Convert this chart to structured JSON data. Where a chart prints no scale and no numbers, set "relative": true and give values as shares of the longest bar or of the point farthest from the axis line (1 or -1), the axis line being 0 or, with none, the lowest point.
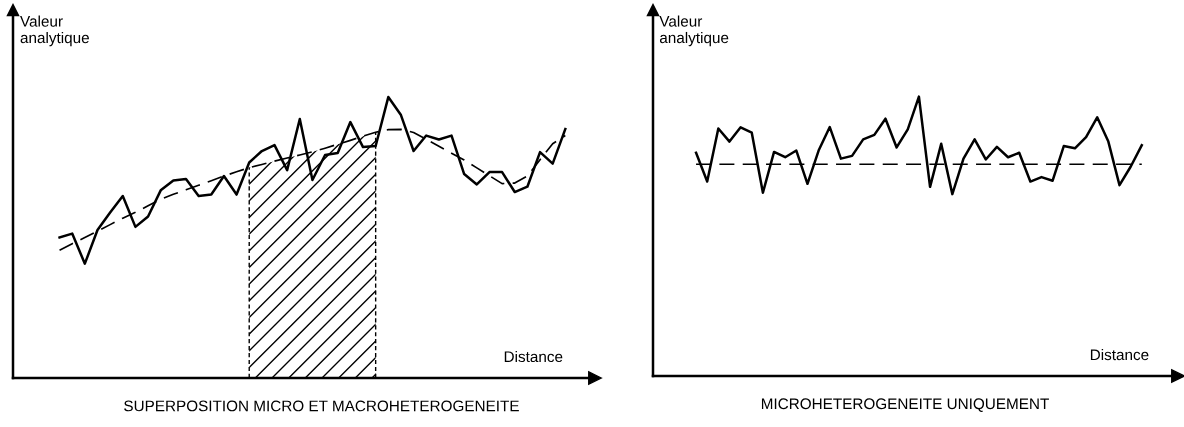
{
  "chart_data": [
    {
      "type": "line",
      "relative": true,
      "title": "SUPERPOSITION MICRO ET MACROHETEROGENEITE",
      "xlabel": "Distance",
      "ylabel": "Valeur\nanalytique",
      "categories": [
        null,
        null,
        null,
        null,
        null,
        null,
        null,
        null,
        null,
        null,
        null,
        null,
        null,
        null,
        null,
        null,
        null,
        null,
        null,
        null,
        null,
        null,
        null,
        null,
        null,
        null,
        null,
        null,
        null,
        null,
        null,
        null,
        null,
        null,
        null,
        null,
        null,
        null,
        null,
        null,
        null
      ],
      "series": [
        {
          "type": "area",
          "color": "#000000",
          "values": [
            null,
            null,
            null,
            null,
            null,
            null,
            null,
            null,
            null,
            null,
            null,
            null,
            null,
            null,
            null,
            0.749,
            0.76,
            0.772,
            0.783,
            0.794,
            0.805,
            0.818,
            0.832,
            0.846,
            0.861,
            0.875,
            null,
            null,
            null,
            null,
            null,
            null,
            null,
            null,
            null,
            null,
            null,
            null,
            null,
            null,
            null
          ]
        },
        {
          "color": "#000000",
          "line_style": "solid",
          "values": [
            0.5,
            0.514,
            0.407,
            0.527,
            0.589,
            0.648,
            0.538,
            0.575,
            0.668,
            0.703,
            0.708,
            0.648,
            0.653,
            0.719,
            0.653,
            0.767,
            0.808,
            0.829,
            0.74,
            0.922,
            0.705,
            0.794,
            0.801,
            0.911,
            0.822,
            0.826,
            1,
            0.936,
            0.808,
            0.863,
            0.849,
            0.863,
            0.726,
            0.689,
            0.733,
            0.733,
            0.662,
            0.681,
            0.804,
            0.763,
            0.886
          ]
        },
        {
          "color": "#000000",
          "line_style": "dashed",
          "values": [
            0.455,
            0.478,
            0.5,
            0.523,
            0.546,
            0.569,
            0.59,
            0.613,
            0.636,
            0.654,
            0.67,
            0.686,
            0.702,
            0.719,
            0.734,
            0.749,
            0.76,
            0.772,
            0.783,
            0.794,
            0.805,
            0.818,
            0.832,
            0.846,
            0.861,
            0.875,
            0.884,
            0.885,
            0.874,
            0.85,
            0.825,
            0.8,
            0.776,
            0.748,
            0.72,
            0.692,
            0.694,
            0.719,
            0.777,
            0.834,
            0.863
          ]
        }
      ]
    },
    {
      "type": "line",
      "relative": true,
      "title": "MICROHETEROGENEITE UNIQUEMENT",
      "xlabel": "Distance",
      "ylabel": "Valeur\nanalytique",
      "categories": [
        null,
        null,
        null,
        null,
        null,
        null,
        null,
        null,
        null,
        null,
        null,
        null,
        null,
        null,
        null,
        null,
        null,
        null,
        null,
        null,
        null,
        null,
        null,
        null,
        null,
        null,
        null,
        null,
        null,
        null,
        null,
        null,
        null,
        null,
        null,
        null,
        null,
        null,
        null,
        null,
        null
      ],
      "series": [
        {
          "color": "#000000",
          "line_style": "dashed",
          "values": [
            0.758,
            0.758,
            0.758,
            0.758,
            0.758,
            0.758,
            0.758,
            0.758,
            0.758,
            0.758,
            0.758,
            0.758,
            0.758,
            0.758,
            0.758,
            0.758,
            0.758,
            0.758,
            0.758,
            0.758,
            0.758,
            0.758,
            0.758,
            0.758,
            0.758,
            0.758,
            0.758,
            0.758,
            0.758,
            0.758,
            0.758,
            0.758,
            0.758,
            0.758,
            0.758,
            0.758,
            0.758,
            0.758,
            0.758,
            0.758,
            0.758
          ]
        },
        {
          "color": "#000000",
          "line_style": "solid",
          "values": [
            0.799,
            0.696,
            0.886,
            0.839,
            0.89,
            0.871,
            0.656,
            0.802,
            0.783,
            0.807,
            0.688,
            0.807,
            0.891,
            0.778,
            0.788,
            0.847,
            0.863,
            0.921,
            0.818,
            0.883,
            1,
            0.677,
            0.831,
            0.651,
            0.778,
            0.847,
            0.775,
            0.82,
            0.783,
            0.799,
            0.696,
            0.712,
            0.699,
            0.823,
            0.815,
            0.855,
            0.926,
            0.839,
            0.683,
            0.749,
            0.826
          ]
        }
      ]
    }
  ]
}
